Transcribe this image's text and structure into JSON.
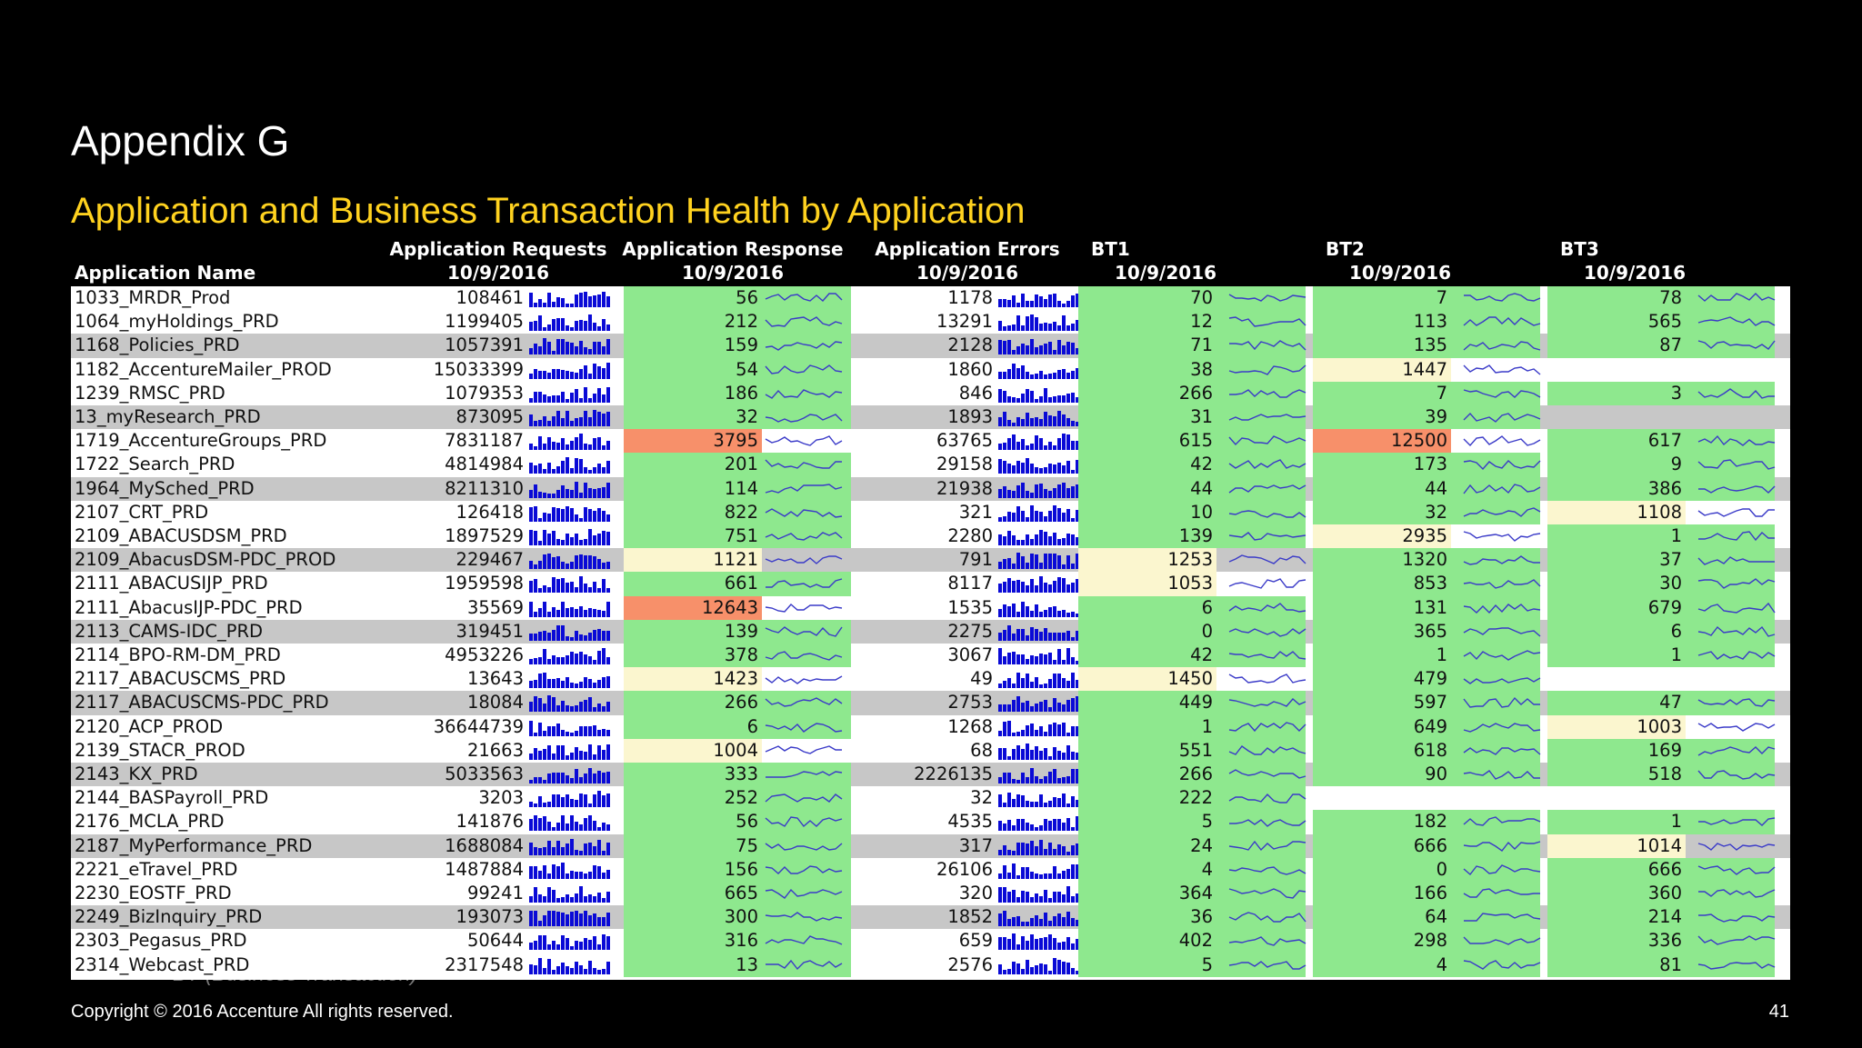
{
  "slide": {
    "title": "Appendix G",
    "subtitle": "Application and Business Transaction Health by Application",
    "note": "BT (Business Transaction)",
    "copyright": "Copyright © 2016 Accenture  All rights reserved.",
    "page_number": "41"
  },
  "table": {
    "columns": {
      "name": {
        "title": "Application Name"
      },
      "requests": {
        "title": "Application Requests",
        "date": "10/9/2016"
      },
      "response": {
        "title": "Application Response",
        "date": "10/9/2016"
      },
      "errors": {
        "title": "Application Errors",
        "date": "10/9/2016"
      },
      "bt1": {
        "title": "BT1",
        "date": "10/9/2016"
      },
      "bt2": {
        "title": "BT2",
        "date": "10/9/2016"
      },
      "bt3": {
        "title": "BT3",
        "date": "10/9/2016"
      }
    },
    "colors": {
      "good": "#8ee88e",
      "warn": "#fbf6cf",
      "bad": "#f7906a",
      "row_stripe": "#c7c7c7",
      "row_plain": "#ffffff",
      "bar_spark": "#0a0ad6",
      "line_spark": "#3a3ac8"
    },
    "rows": [
      {
        "name": "1033_MRDR_Prod",
        "requests": "108461",
        "response": "56",
        "response_status": "good",
        "errors": "1178",
        "bt1": "70",
        "bt1_status": "good",
        "bt2": "7",
        "bt2_status": "good",
        "bt3": "78",
        "bt3_status": "good"
      },
      {
        "name": "1064_myHoldings_PRD",
        "requests": "1199405",
        "response": "212",
        "response_status": "good",
        "errors": "13291",
        "bt1": "12",
        "bt1_status": "good",
        "bt2": "113",
        "bt2_status": "good",
        "bt3": "565",
        "bt3_status": "good"
      },
      {
        "name": "1168_Policies_PRD",
        "requests": "1057391",
        "response": "159",
        "response_status": "good",
        "errors": "2128",
        "bt1": "71",
        "bt1_status": "good",
        "bt2": "135",
        "bt2_status": "good",
        "bt3": "87",
        "bt3_status": "good"
      },
      {
        "name": "1182_AccentureMailer_PROD",
        "requests": "15033399",
        "response": "54",
        "response_status": "good",
        "errors": "1860",
        "bt1": "38",
        "bt1_status": "good",
        "bt2": "1447",
        "bt2_status": "warn",
        "bt3": "",
        "bt3_status": "none"
      },
      {
        "name": "1239_RMSC_PRD",
        "requests": "1079353",
        "response": "186",
        "response_status": "good",
        "errors": "846",
        "bt1": "266",
        "bt1_status": "good",
        "bt2": "7",
        "bt2_status": "good",
        "bt3": "3",
        "bt3_status": "good"
      },
      {
        "name": "13_myResearch_PRD",
        "requests": "873095",
        "response": "32",
        "response_status": "good",
        "errors": "1893",
        "bt1": "31",
        "bt1_status": "good",
        "bt2": "39",
        "bt2_status": "good",
        "bt3": "",
        "bt3_status": "none"
      },
      {
        "name": "1719_AccentureGroups_PRD",
        "requests": "7831187",
        "response": "3795",
        "response_status": "bad",
        "errors": "63765",
        "bt1": "615",
        "bt1_status": "good",
        "bt2": "12500",
        "bt2_status": "bad",
        "bt3": "617",
        "bt3_status": "good"
      },
      {
        "name": "1722_Search_PRD",
        "requests": "4814984",
        "response": "201",
        "response_status": "good",
        "errors": "29158",
        "bt1": "42",
        "bt1_status": "good",
        "bt2": "173",
        "bt2_status": "good",
        "bt3": "9",
        "bt3_status": "good"
      },
      {
        "name": "1964_MySched_PRD",
        "requests": "8211310",
        "response": "114",
        "response_status": "good",
        "errors": "21938",
        "bt1": "44",
        "bt1_status": "good",
        "bt2": "44",
        "bt2_status": "good",
        "bt3": "386",
        "bt3_status": "good"
      },
      {
        "name": "2107_CRT_PRD",
        "requests": "126418",
        "response": "822",
        "response_status": "good",
        "errors": "321",
        "bt1": "10",
        "bt1_status": "good",
        "bt2": "32",
        "bt2_status": "good",
        "bt3": "1108",
        "bt3_status": "warn"
      },
      {
        "name": "2109_ABACUSDSM_PRD",
        "requests": "1897529",
        "response": "751",
        "response_status": "good",
        "errors": "2280",
        "bt1": "139",
        "bt1_status": "good",
        "bt2": "2935",
        "bt2_status": "warn",
        "bt3": "1",
        "bt3_status": "good"
      },
      {
        "name": "2109_AbacusDSM-PDC_PROD",
        "requests": "229467",
        "response": "1121",
        "response_status": "warn",
        "errors": "791",
        "bt1": "1253",
        "bt1_status": "warn",
        "bt2": "1320",
        "bt2_status": "good",
        "bt3": "37",
        "bt3_status": "good"
      },
      {
        "name": "2111_ABACUSIJP_PRD",
        "requests": "1959598",
        "response": "661",
        "response_status": "good",
        "errors": "8117",
        "bt1": "1053",
        "bt1_status": "warn",
        "bt2": "853",
        "bt2_status": "good",
        "bt3": "30",
        "bt3_status": "good"
      },
      {
        "name": "2111_AbacusIJP-PDC_PRD",
        "requests": "35569",
        "response": "12643",
        "response_status": "bad",
        "errors": "1535",
        "bt1": "6",
        "bt1_status": "good",
        "bt2": "131",
        "bt2_status": "good",
        "bt3": "679",
        "bt3_status": "good"
      },
      {
        "name": "2113_CAMS-IDC_PRD",
        "requests": "319451",
        "response": "139",
        "response_status": "good",
        "errors": "2275",
        "bt1": "0",
        "bt1_status": "good",
        "bt2": "365",
        "bt2_status": "good",
        "bt3": "6",
        "bt3_status": "good"
      },
      {
        "name": "2114_BPO-RM-DM_PRD",
        "requests": "4953226",
        "response": "378",
        "response_status": "good",
        "errors": "3067",
        "bt1": "42",
        "bt1_status": "good",
        "bt2": "1",
        "bt2_status": "good",
        "bt3": "1",
        "bt3_status": "good"
      },
      {
        "name": "2117_ABACUSCMS_PRD",
        "requests": "13643",
        "response": "1423",
        "response_status": "warn",
        "errors": "49",
        "bt1": "1450",
        "bt1_status": "warn",
        "bt2": "479",
        "bt2_status": "good",
        "bt3": "",
        "bt3_status": "none"
      },
      {
        "name": "2117_ABACUSCMS-PDC_PRD",
        "requests": "18084",
        "response": "266",
        "response_status": "good",
        "errors": "2753",
        "bt1": "449",
        "bt1_status": "good",
        "bt2": "597",
        "bt2_status": "good",
        "bt3": "47",
        "bt3_status": "good"
      },
      {
        "name": "2120_ACP_PROD",
        "requests": "36644739",
        "response": "6",
        "response_status": "good",
        "errors": "1268",
        "bt1": "1",
        "bt1_status": "good",
        "bt2": "649",
        "bt2_status": "good",
        "bt3": "1003",
        "bt3_status": "warn"
      },
      {
        "name": "2139_STACR_PROD",
        "requests": "21663",
        "response": "1004",
        "response_status": "warn",
        "errors": "68",
        "bt1": "551",
        "bt1_status": "good",
        "bt2": "618",
        "bt2_status": "good",
        "bt3": "169",
        "bt3_status": "good"
      },
      {
        "name": "2143_KX_PRD",
        "requests": "5033563",
        "response": "333",
        "response_status": "good",
        "errors": "2226135",
        "bt1": "266",
        "bt1_status": "good",
        "bt2": "90",
        "bt2_status": "good",
        "bt3": "518",
        "bt3_status": "good"
      },
      {
        "name": "2144_BASPayroll_PRD",
        "requests": "3203",
        "response": "252",
        "response_status": "good",
        "errors": "32",
        "bt1": "222",
        "bt1_status": "good",
        "bt2": "",
        "bt2_status": "none",
        "bt3": "",
        "bt3_status": "none"
      },
      {
        "name": "2176_MCLA_PRD",
        "requests": "141876",
        "response": "56",
        "response_status": "good",
        "errors": "4535",
        "bt1": "5",
        "bt1_status": "good",
        "bt2": "182",
        "bt2_status": "good",
        "bt3": "1",
        "bt3_status": "good"
      },
      {
        "name": "2187_MyPerformance_PRD",
        "requests": "1688084",
        "response": "75",
        "response_status": "good",
        "errors": "317",
        "bt1": "24",
        "bt1_status": "good",
        "bt2": "666",
        "bt2_status": "good",
        "bt3": "1014",
        "bt3_status": "warn"
      },
      {
        "name": "2221_eTravel_PRD",
        "requests": "1487884",
        "response": "156",
        "response_status": "good",
        "errors": "26106",
        "bt1": "4",
        "bt1_status": "good",
        "bt2": "0",
        "bt2_status": "good",
        "bt3": "666",
        "bt3_status": "good"
      },
      {
        "name": "2230_EOSTF_PRD",
        "requests": "99241",
        "response": "665",
        "response_status": "good",
        "errors": "320",
        "bt1": "364",
        "bt1_status": "good",
        "bt2": "166",
        "bt2_status": "good",
        "bt3": "360",
        "bt3_status": "good"
      },
      {
        "name": "2249_BizInquiry_PRD",
        "requests": "193073",
        "response": "300",
        "response_status": "good",
        "errors": "1852",
        "bt1": "36",
        "bt1_status": "good",
        "bt2": "64",
        "bt2_status": "good",
        "bt3": "214",
        "bt3_status": "good"
      },
      {
        "name": "2303_Pegasus_PRD",
        "requests": "50644",
        "response": "316",
        "response_status": "good",
        "errors": "659",
        "bt1": "402",
        "bt1_status": "good",
        "bt2": "298",
        "bt2_status": "good",
        "bt3": "336",
        "bt3_status": "good"
      },
      {
        "name": "2314_Webcast_PRD",
        "requests": "2317548",
        "response": "13",
        "response_status": "good",
        "errors": "2576",
        "bt1": "5",
        "bt1_status": "good",
        "bt2": "4",
        "bt2_status": "good",
        "bt3": "81",
        "bt3_status": "good"
      }
    ]
  }
}
